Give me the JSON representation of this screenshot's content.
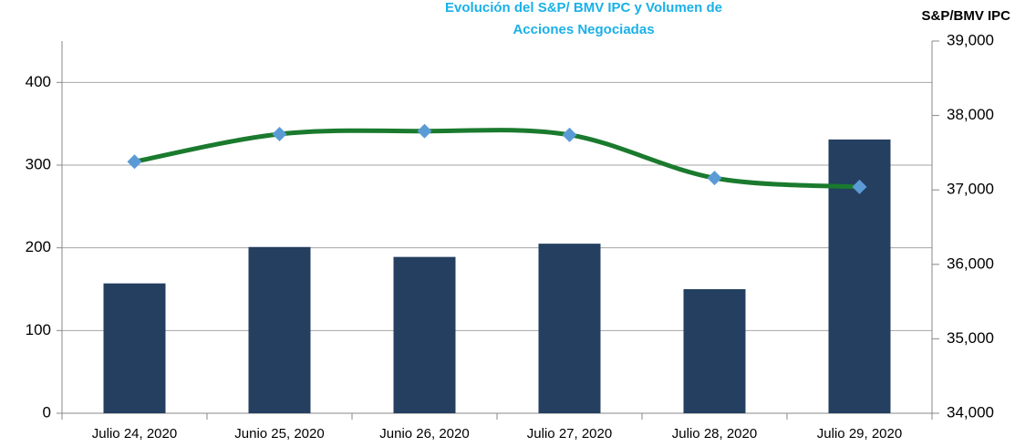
{
  "chart_data": {
    "type": "bar_line",
    "title": [
      "Evolución del S&P/ BMV IPC y Volumen de",
      "Acciones Negociadas"
    ],
    "y2_label": "S&P/BMV IPC",
    "categories": [
      "Julio 24, 2020",
      "Junio 25, 2020",
      "Junio 26, 2020",
      "Julio 27, 2020",
      "Julio 28, 2020",
      "Julio 29, 2020"
    ],
    "series": [
      {
        "type": "bar",
        "color": "#243f60",
        "values": [
          157,
          201,
          189,
          205,
          150,
          331
        ]
      },
      {
        "type": "line",
        "axis": "y2",
        "color": "#1a7a2e",
        "marker_color": "#5b9bd5",
        "values": [
          37380,
          37750,
          37790,
          37740,
          37160,
          37040
        ]
      }
    ],
    "ylim": [
      0,
      450
    ],
    "yticks": [
      0,
      100,
      200,
      300,
      400
    ],
    "y2lim": [
      34000,
      39000
    ],
    "y2ticks": [
      {
        "value": 34000,
        "label": "34,000"
      },
      {
        "value": 35000,
        "label": "35,000"
      },
      {
        "value": 36000,
        "label": "36,000"
      },
      {
        "value": 37000,
        "label": "37,000"
      },
      {
        "value": 38000,
        "label": "38,000"
      },
      {
        "value": 39000,
        "label": "39,000"
      }
    ],
    "grid": true
  }
}
